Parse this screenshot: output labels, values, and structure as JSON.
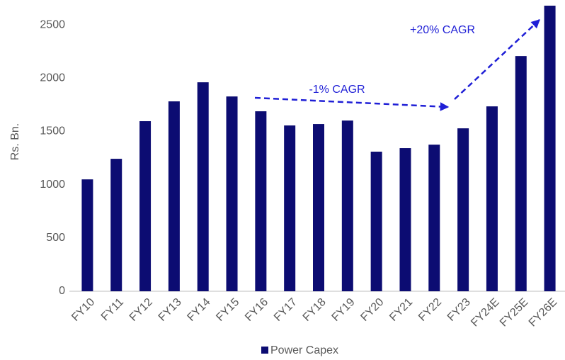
{
  "chart_data": {
    "type": "bar",
    "y_label": "Rs. Bn.",
    "categories": [
      "FY10",
      "FY11",
      "FY12",
      "FY13",
      "FY14",
      "FY15",
      "FY16",
      "FY17",
      "FY18",
      "FY19",
      "FY20",
      "FY21",
      "FY22",
      "FY23",
      "FY24E",
      "FY25E",
      "FY26E"
    ],
    "series": [
      {
        "name": "Power Capex",
        "color": "#0c0c72",
        "values": [
          1050,
          1243,
          1596,
          1782,
          1961,
          1828,
          1689,
          1556,
          1569,
          1602,
          1310,
          1343,
          1376,
          1529,
          1735,
          2207,
          2680
        ]
      }
    ],
    "ylim": [
      0,
      2680
    ],
    "yticks": [
      0,
      500,
      1000,
      1500,
      2000,
      2500
    ],
    "grid": false,
    "annotations": [
      "-1% CAGR",
      "+20% CAGR"
    ],
    "legend": "bottom"
  }
}
